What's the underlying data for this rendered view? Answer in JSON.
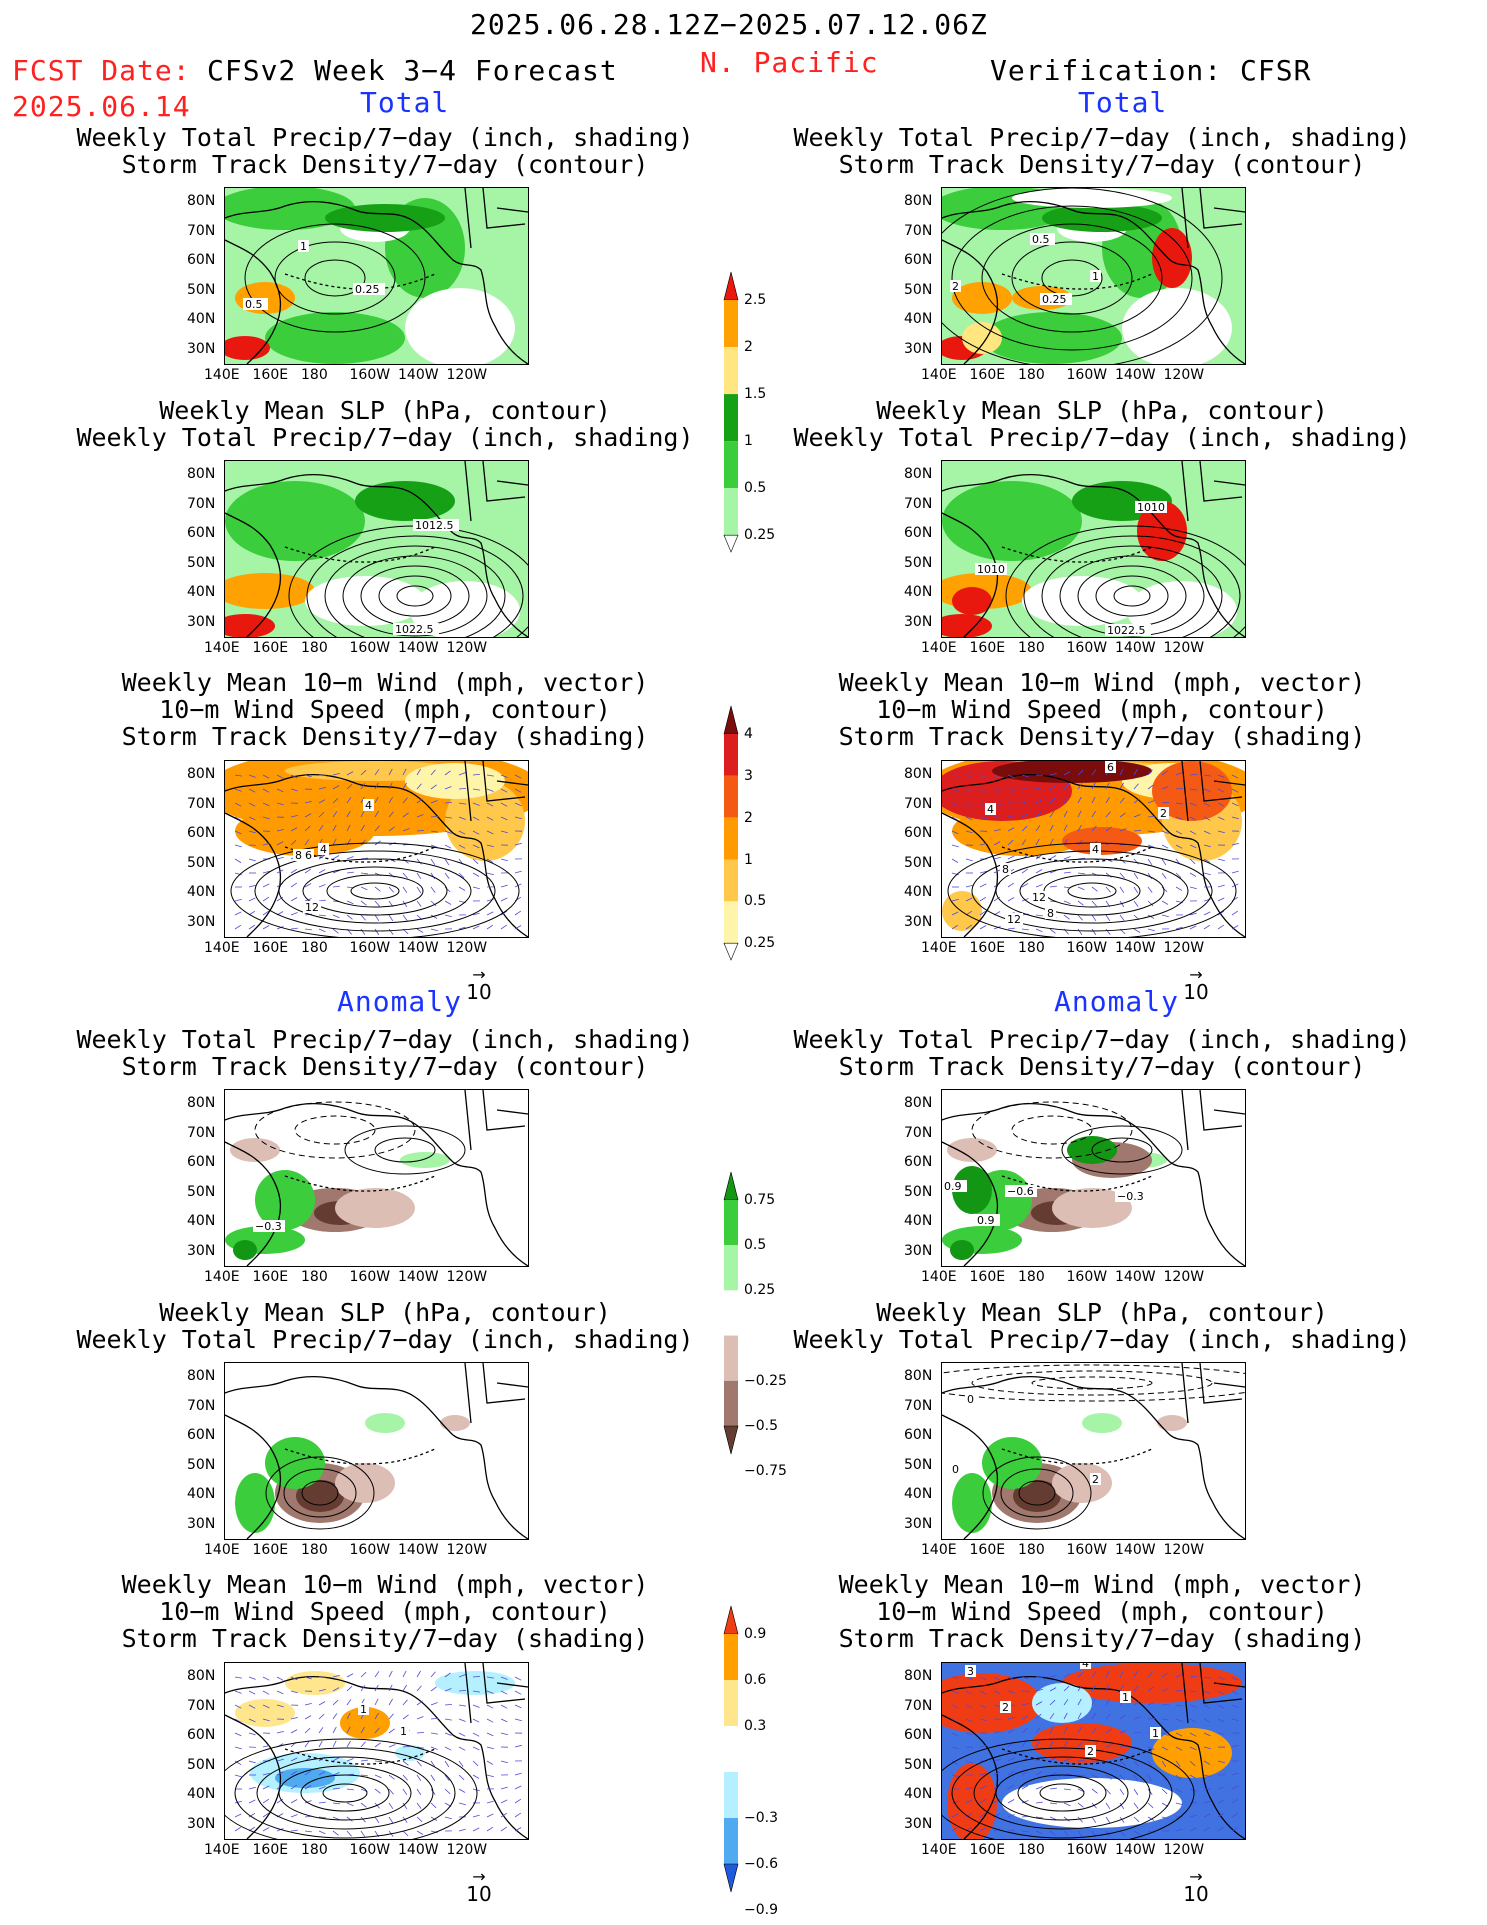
{
  "header": {
    "date_range": "2025.06.28.12Z−2025.07.12.06Z",
    "fcst_label": "FCST Date:",
    "fcst_date": "2025.06.14",
    "model": "CFSv2 Week 3−4 Forecast",
    "region": "N. Pacific",
    "verification": "Verification: CFSR"
  },
  "sections": {
    "total": "Total",
    "anomaly": "Anomaly"
  },
  "panel_titles": {
    "precip_track": "Weekly Total Precip/7−day (inch, shading)\nStorm Track Density/7−day (contour)",
    "slp_precip": "Weekly Mean SLP (hPa, contour)\nWeekly Total Precip/7−day (inch, shading)",
    "wind_track": "Weekly Mean 10−m Wind (mph, vector)\n10−m Wind Speed (mph, contour)\nStorm Track Density/7−day (shading)"
  },
  "axes": {
    "lat": [
      "80N",
      "70N",
      "60N",
      "50N",
      "40N",
      "30N"
    ],
    "lon": [
      "140E",
      "160E",
      "180",
      "160W",
      "140W",
      "120W"
    ]
  },
  "vector_ref": "10",
  "contour_labels": {
    "f_precip": [
      "1",
      "0.25",
      "0.5"
    ],
    "v_precip": [
      "0.5",
      "0.25",
      "1",
      "2"
    ],
    "f_slp": [
      "1012.5",
      "1022.5"
    ],
    "v_slp": [
      "1010",
      "1010",
      "1022.5"
    ],
    "f_wind": [
      "4",
      "4",
      "6",
      "8",
      "12"
    ],
    "v_wind": [
      "6",
      "4",
      "2",
      "4",
      "8",
      "12",
      "12",
      "8"
    ],
    "f_aprecip": [
      "−0.3"
    ],
    "v_aprecip": [
      "0.9",
      "−0.6",
      "−0.3",
      "0.9"
    ],
    "v_aslp": [
      "0",
      "2",
      "0"
    ],
    "f_awind": [
      "1",
      "1"
    ],
    "v_awind": [
      "3",
      "4",
      "2",
      "1",
      "1",
      "2"
    ]
  },
  "colorbars": {
    "precip_total": {
      "labels": [
        "2.5",
        "2",
        "1.5",
        "1",
        "0.5",
        "0.25"
      ],
      "colors": [
        "#e8180e",
        "#ffa100",
        "#ffe680",
        "#16a016",
        "#3ccd3c",
        "#a6f4a6"
      ]
    },
    "track_total": {
      "labels": [
        "4",
        "3",
        "2",
        "1",
        "0.5",
        "0.25"
      ],
      "colors": [
        "#7a0c0c",
        "#dc1e1e",
        "#f55a14",
        "#ff9b00",
        "#ffc84b",
        "#fff5aa"
      ]
    },
    "precip_anom": {
      "labels": [
        "0.75",
        "0.5",
        "0.25",
        "−0.25",
        "−0.5",
        "−0.75"
      ],
      "colors": [
        "#139613",
        "#3ccd3c",
        "#a6f4a6",
        "#ffffff",
        "#dcbeb4",
        "#a0786e",
        "#643c32"
      ]
    },
    "track_anom": {
      "labels": [
        "0.9",
        "0.6",
        "0.3",
        "−0.3",
        "−0.6",
        "−0.9"
      ],
      "colors": [
        "#f03c14",
        "#ffa000",
        "#ffe68c",
        "#ffffff",
        "#b4f0ff",
        "#50aaf0",
        "#1e5adc"
      ]
    }
  }
}
